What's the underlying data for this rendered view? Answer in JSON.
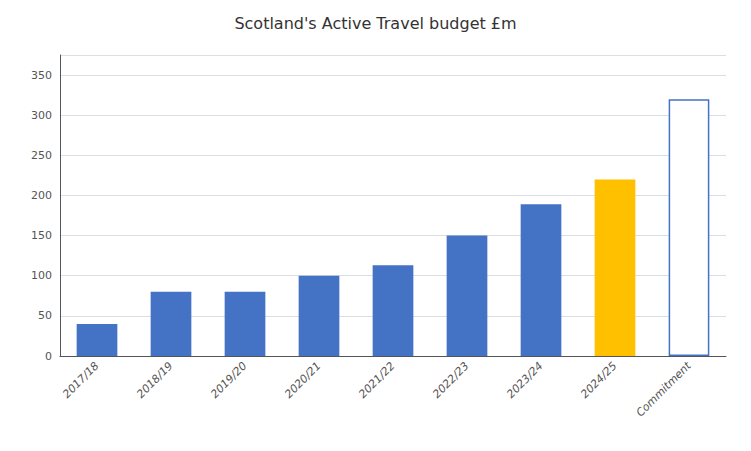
{
  "chart_data": {
    "type": "bar",
    "title": "Scotland's Active Travel budget £m",
    "categories": [
      "2017/18",
      "2018/19",
      "2019/20",
      "2020/21",
      "2021/22",
      "2022/23",
      "2023/24",
      "2024/25",
      "Commitment"
    ],
    "values": [
      40,
      80,
      80,
      100,
      113,
      150,
      189,
      220,
      320
    ],
    "colors": [
      "#4472C4",
      "#4472C4",
      "#4472C4",
      "#4472C4",
      "#4472C4",
      "#4472C4",
      "#4472C4",
      "#FFC000",
      "white"
    ],
    "ylim": [
      0,
      375
    ],
    "yticks": [
      0,
      50,
      100,
      150,
      200,
      250,
      300,
      350
    ],
    "grid": true
  }
}
